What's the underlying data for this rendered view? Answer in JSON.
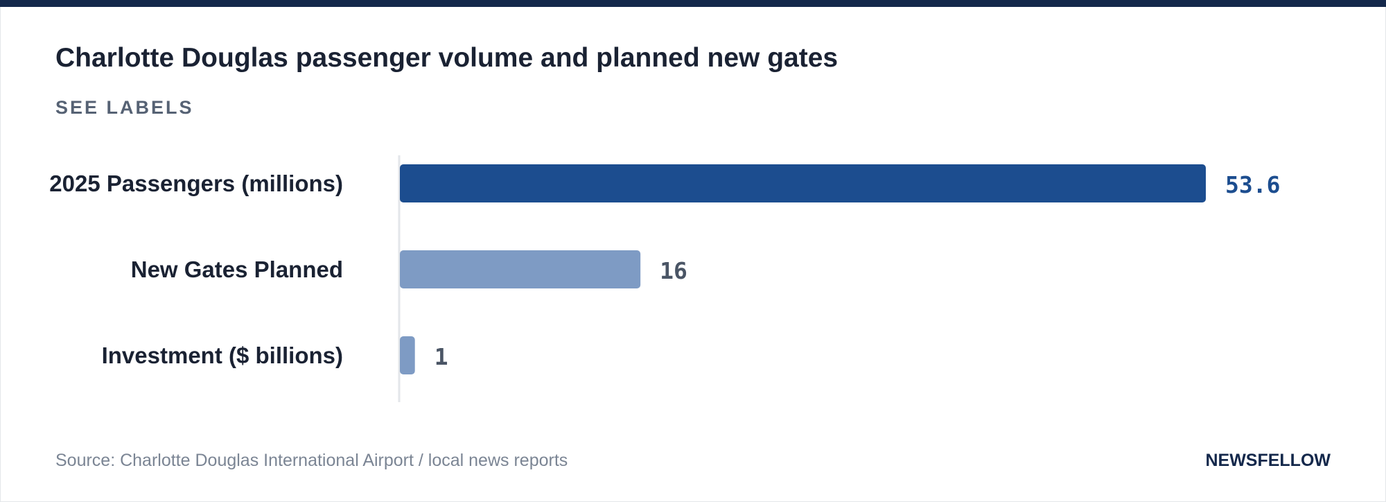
{
  "header": {
    "title": "Charlotte Douglas passenger volume and planned new gates",
    "subtitle": "SEE LABELS"
  },
  "footer": {
    "source": "Source: Charlotte Douglas International Airport / local news reports",
    "brand": "NEWSFELLOW"
  },
  "colors": {
    "highlight_bar": "#1c4d8f",
    "muted_bar": "#7e9bc4",
    "highlight_value": "#1c4d8f",
    "muted_value": "#4a5565",
    "axis": "#e3e6ea",
    "top_rule": "#14284b"
  },
  "chart_data": {
    "type": "bar",
    "orientation": "horizontal",
    "categories": [
      "2025 Passengers (millions)",
      "New Gates Planned",
      "Investment ($ billions)"
    ],
    "values": [
      53.6,
      16,
      1
    ],
    "value_labels": [
      "53.6",
      "16",
      "1"
    ],
    "highlighted_index": 0,
    "xlim": [
      0,
      53.6
    ],
    "grid": false,
    "legend": "none"
  }
}
